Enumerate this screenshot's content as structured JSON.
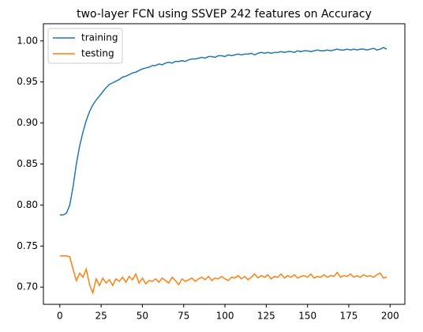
{
  "chart_data": {
    "type": "line",
    "title": "two-layer FCN using SSVEP 242 features on Accuracy",
    "x": [
      0,
      2,
      4,
      6,
      8,
      10,
      12,
      14,
      16,
      18,
      20,
      22,
      24,
      26,
      28,
      30,
      32,
      34,
      36,
      38,
      40,
      42,
      44,
      46,
      48,
      50,
      52,
      54,
      56,
      58,
      60,
      62,
      64,
      66,
      68,
      70,
      72,
      74,
      76,
      78,
      80,
      82,
      84,
      86,
      88,
      90,
      92,
      94,
      96,
      98,
      100,
      102,
      104,
      106,
      108,
      110,
      112,
      114,
      116,
      118,
      120,
      122,
      124,
      126,
      128,
      130,
      132,
      134,
      136,
      138,
      140,
      142,
      144,
      146,
      148,
      150,
      152,
      154,
      156,
      158,
      160,
      162,
      164,
      166,
      168,
      170,
      172,
      174,
      176,
      178,
      180,
      182,
      184,
      186,
      188,
      190,
      192,
      194,
      196,
      198
    ],
    "series": [
      {
        "name": "training",
        "color": "#1f77b4",
        "values": [
          0.788,
          0.788,
          0.79,
          0.8,
          0.822,
          0.85,
          0.872,
          0.889,
          0.903,
          0.914,
          0.922,
          0.928,
          0.933,
          0.938,
          0.943,
          0.947,
          0.949,
          0.951,
          0.953,
          0.956,
          0.957,
          0.959,
          0.961,
          0.962,
          0.964,
          0.966,
          0.967,
          0.968,
          0.97,
          0.97,
          0.972,
          0.971,
          0.973,
          0.974,
          0.973,
          0.975,
          0.975,
          0.976,
          0.975,
          0.977,
          0.978,
          0.978,
          0.979,
          0.98,
          0.979,
          0.981,
          0.981,
          0.98,
          0.982,
          0.982,
          0.981,
          0.983,
          0.982,
          0.983,
          0.984,
          0.983,
          0.984,
          0.984,
          0.985,
          0.983,
          0.985,
          0.986,
          0.985,
          0.986,
          0.985,
          0.986,
          0.986,
          0.987,
          0.986,
          0.987,
          0.987,
          0.986,
          0.988,
          0.987,
          0.988,
          0.988,
          0.987,
          0.988,
          0.989,
          0.988,
          0.988,
          0.989,
          0.988,
          0.989,
          0.99,
          0.989,
          0.989,
          0.99,
          0.989,
          0.99,
          0.989,
          0.99,
          0.99,
          0.989,
          0.99,
          0.991,
          0.989,
          0.99,
          0.992,
          0.99
        ]
      },
      {
        "name": "testing",
        "color": "#ff7f0e",
        "values": [
          0.738,
          0.738,
          0.738,
          0.737,
          0.722,
          0.708,
          0.717,
          0.712,
          0.722,
          0.703,
          0.693,
          0.71,
          0.702,
          0.711,
          0.705,
          0.709,
          0.702,
          0.71,
          0.707,
          0.712,
          0.706,
          0.713,
          0.709,
          0.716,
          0.705,
          0.711,
          0.704,
          0.708,
          0.707,
          0.71,
          0.706,
          0.711,
          0.708,
          0.705,
          0.712,
          0.708,
          0.703,
          0.71,
          0.707,
          0.709,
          0.711,
          0.707,
          0.71,
          0.712,
          0.709,
          0.713,
          0.708,
          0.711,
          0.71,
          0.713,
          0.71,
          0.708,
          0.712,
          0.711,
          0.714,
          0.71,
          0.713,
          0.709,
          0.712,
          0.716,
          0.711,
          0.714,
          0.712,
          0.715,
          0.71,
          0.713,
          0.712,
          0.716,
          0.711,
          0.714,
          0.712,
          0.715,
          0.711,
          0.713,
          0.714,
          0.712,
          0.716,
          0.711,
          0.713,
          0.712,
          0.715,
          0.712,
          0.714,
          0.713,
          0.718,
          0.712,
          0.714,
          0.713,
          0.716,
          0.712,
          0.714,
          0.712,
          0.715,
          0.713,
          0.714,
          0.712,
          0.715,
          0.717,
          0.711,
          0.712
        ]
      }
    ],
    "xlim": [
      -9.95,
      208.95
    ],
    "ylim": [
      0.679,
      1.021
    ],
    "xticks": [
      0,
      25,
      50,
      75,
      100,
      125,
      150,
      175,
      200
    ],
    "yticks": [
      {
        "value": 0.7,
        "label": "0.70"
      },
      {
        "value": 0.75,
        "label": "0.75"
      },
      {
        "value": 0.8,
        "label": "0.80"
      },
      {
        "value": 0.85,
        "label": "0.85"
      },
      {
        "value": 0.9,
        "label": "0.90"
      },
      {
        "value": 0.95,
        "label": "0.95"
      },
      {
        "value": 1.0,
        "label": "1.00"
      }
    ],
    "legend": "upper left"
  }
}
